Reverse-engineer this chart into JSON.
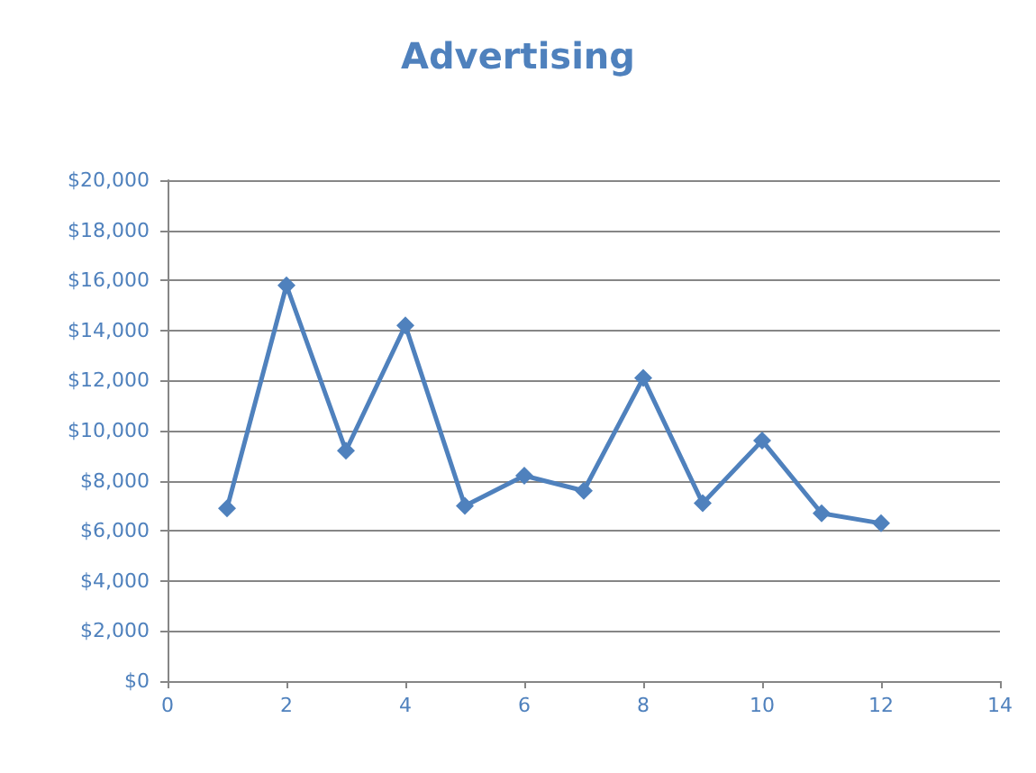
{
  "chart_data": {
    "type": "line",
    "title": "Advertising",
    "x": [
      1,
      2,
      3,
      4,
      5,
      6,
      7,
      8,
      9,
      10,
      11,
      12
    ],
    "series": [
      {
        "color": "#4f81bd",
        "values": [
          6900,
          15800,
          9200,
          14200,
          7000,
          8200,
          7600,
          12100,
          7100,
          9600,
          6700,
          6300
        ]
      }
    ],
    "xlim": [
      0,
      14
    ],
    "xticks": [
      0,
      2,
      4,
      6,
      8,
      10,
      12,
      14
    ],
    "ylim": [
      0,
      20000
    ],
    "yticks": [
      {
        "value": 0,
        "label": "$0"
      },
      {
        "value": 2000,
        "label": "$2,000"
      },
      {
        "value": 4000,
        "label": "$4,000"
      },
      {
        "value": 6000,
        "label": "$6,000"
      },
      {
        "value": 8000,
        "label": "$8,000"
      },
      {
        "value": 10000,
        "label": "$10,000"
      },
      {
        "value": 12000,
        "label": "$12,000"
      },
      {
        "value": 14000,
        "label": "$14,000"
      },
      {
        "value": 16000,
        "label": "$16,000"
      },
      {
        "value": 18000,
        "label": "$18,000"
      },
      {
        "value": 20000,
        "label": "$20,000"
      }
    ],
    "grid": "y",
    "marker": "diamond",
    "line_style": "solid"
  }
}
